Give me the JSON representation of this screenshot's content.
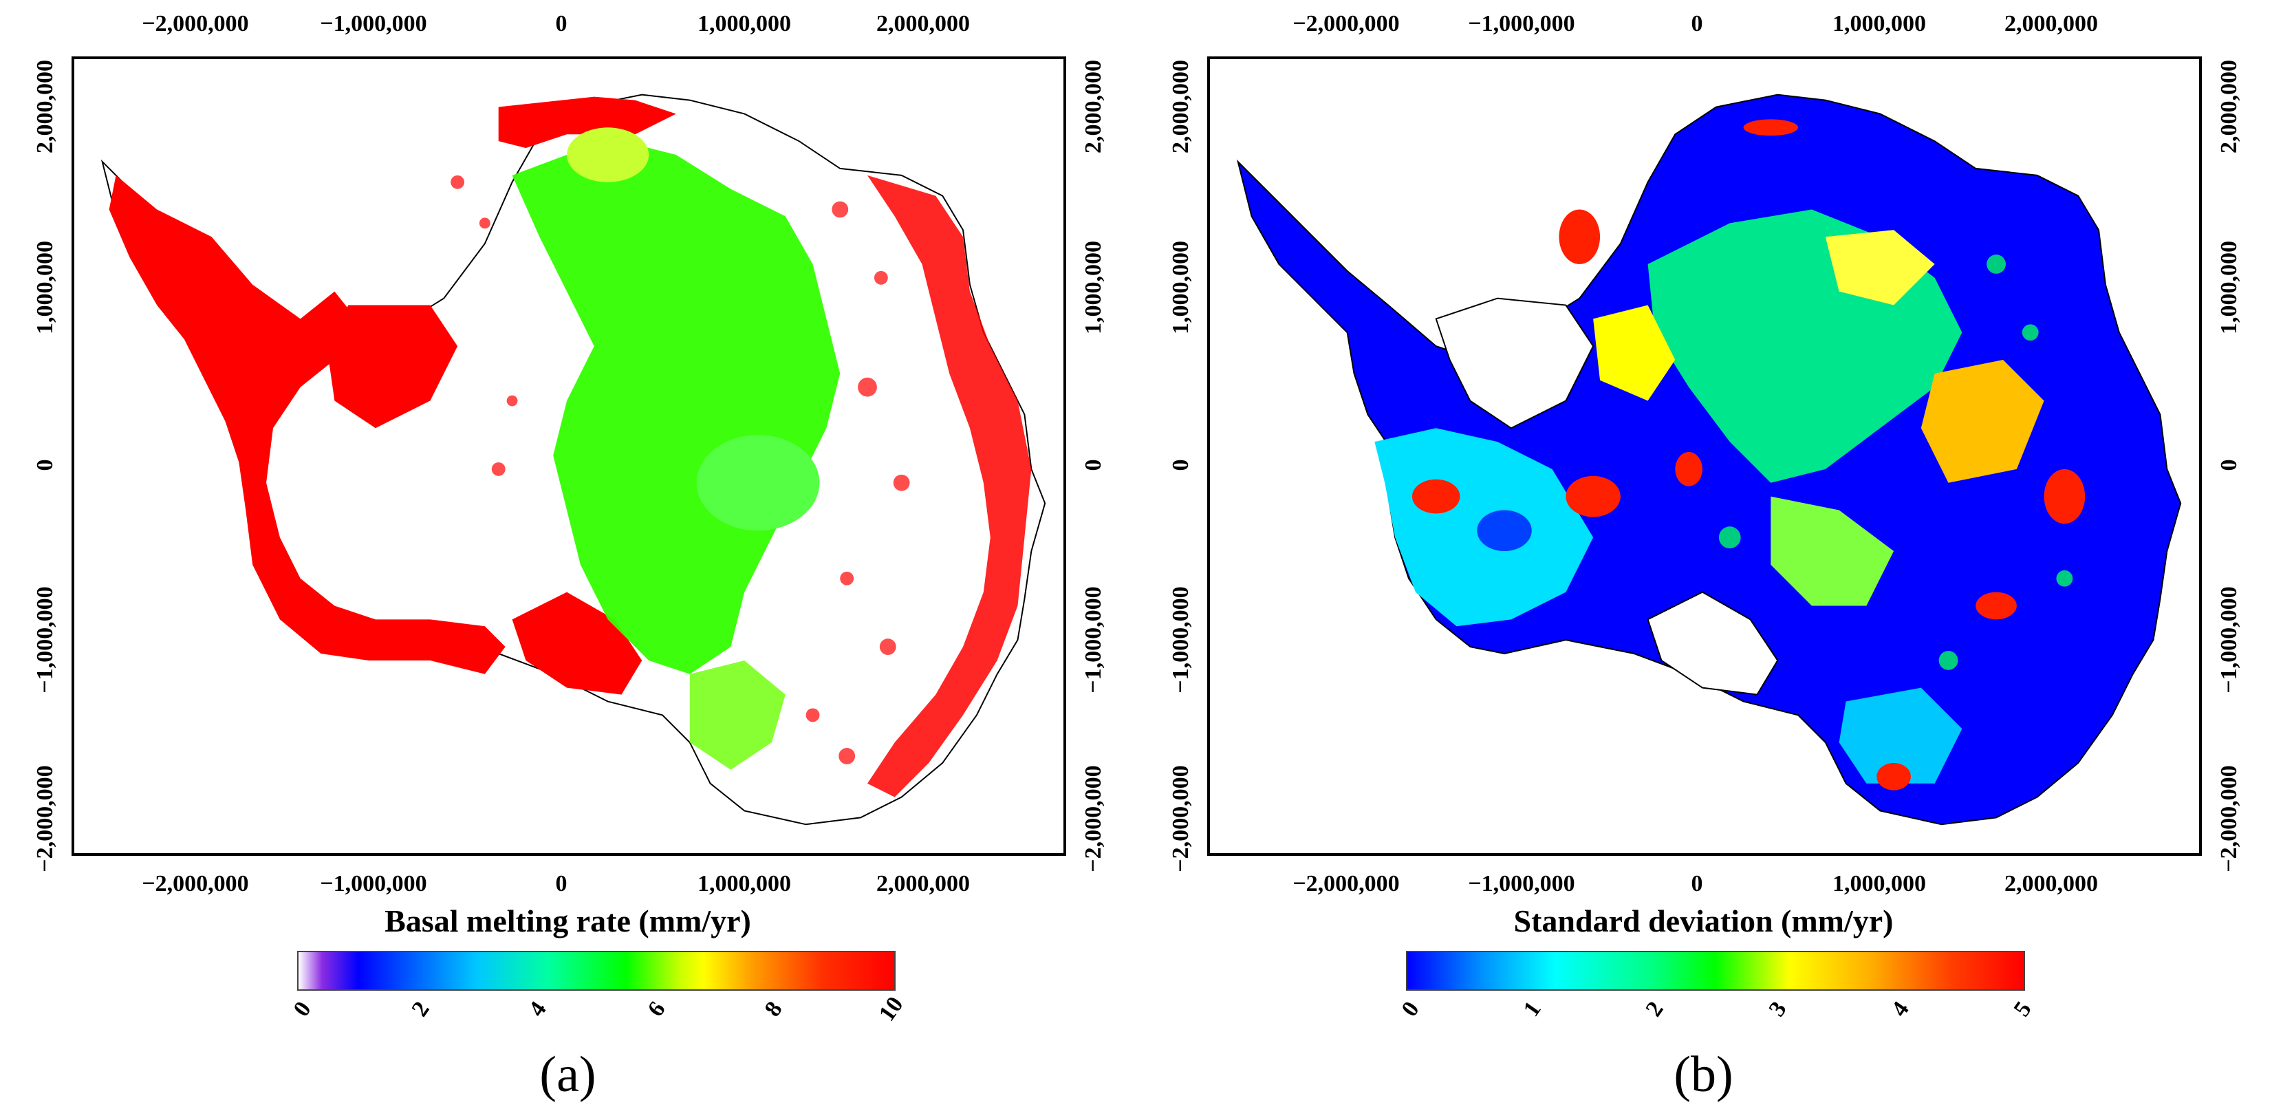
{
  "figure": {
    "panels": [
      {
        "id": "a",
        "label": "(a)",
        "colorbar_title": "Basal melting rate  (mm/yr)",
        "colorbar_ticks": [
          "0",
          "2",
          "4",
          "6",
          "8",
          "10"
        ],
        "colorbar_range": [
          0,
          10
        ]
      },
      {
        "id": "b",
        "label": "(b)",
        "colorbar_title": "Standard deviation  (mm/yr)",
        "colorbar_ticks": [
          "0",
          "1",
          "2",
          "3",
          "4",
          "5"
        ],
        "colorbar_range": [
          0,
          5
        ]
      }
    ],
    "x_ticks": [
      "−2,000,000",
      "−1,000,000",
      "0",
      "1,000,000",
      "2,000,000"
    ],
    "y_ticks": [
      "2,000,000",
      "1,000,000",
      "0",
      "−1,000,000",
      "−2,000,000"
    ],
    "colors": {
      "land_outline": "#000000",
      "melt_high": "#ff0000",
      "melt_mid": "#33ff00",
      "std_low": "#0000ff",
      "std_mid": "#00ff66",
      "std_high": "#ff2000"
    }
  }
}
